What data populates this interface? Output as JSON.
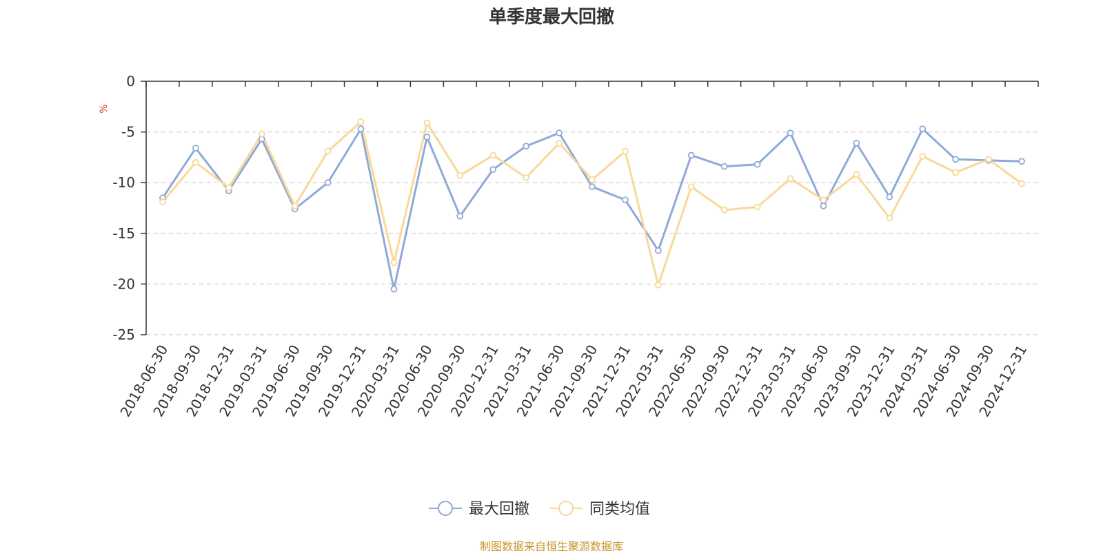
{
  "chart_data": {
    "type": "line",
    "title": "单季度最大回撤",
    "ylabel": "%",
    "ylim": [
      -25,
      0
    ],
    "yticks": [
      0,
      -5,
      -10,
      -15,
      -20,
      -25
    ],
    "grid": true,
    "legend_position": "bottom",
    "categories": [
      "2018-06-30",
      "2018-09-30",
      "2018-12-31",
      "2019-03-31",
      "2019-06-30",
      "2019-09-30",
      "2019-12-31",
      "2020-03-31",
      "2020-06-30",
      "2020-09-30",
      "2020-12-31",
      "2021-03-31",
      "2021-06-30",
      "2021-09-30",
      "2021-12-31",
      "2022-03-31",
      "2022-06-30",
      "2022-09-30",
      "2022-12-31",
      "2023-03-31",
      "2023-06-30",
      "2023-09-30",
      "2023-12-31",
      "2024-03-31",
      "2024-06-30",
      "2024-09-30",
      "2024-12-31"
    ],
    "series": [
      {
        "name": "最大回撤",
        "color": "#8eaad8",
        "values": [
          -11.5,
          -6.6,
          -10.8,
          -5.7,
          -12.6,
          -10.0,
          -4.7,
          -20.5,
          -5.5,
          -13.3,
          -8.7,
          -6.4,
          -5.1,
          -10.4,
          -11.7,
          -16.7,
          -7.3,
          -8.4,
          -8.2,
          -5.1,
          -12.3,
          -6.1,
          -11.4,
          -4.7,
          -7.7,
          -7.8,
          -7.9
        ]
      },
      {
        "name": "同类均值",
        "color": "#f9d898",
        "values": [
          -11.9,
          -8.0,
          -10.5,
          -5.2,
          -12.3,
          -6.9,
          -4.0,
          -17.9,
          -4.1,
          -9.3,
          -7.3,
          -9.5,
          -6.1,
          -9.7,
          -6.9,
          -20.1,
          -10.4,
          -12.7,
          -12.4,
          -9.6,
          -11.7,
          -9.2,
          -13.5,
          -7.4,
          -9.0,
          -7.7,
          -10.1
        ]
      }
    ]
  },
  "source_note": "制图数据来自恒生聚源数据库"
}
